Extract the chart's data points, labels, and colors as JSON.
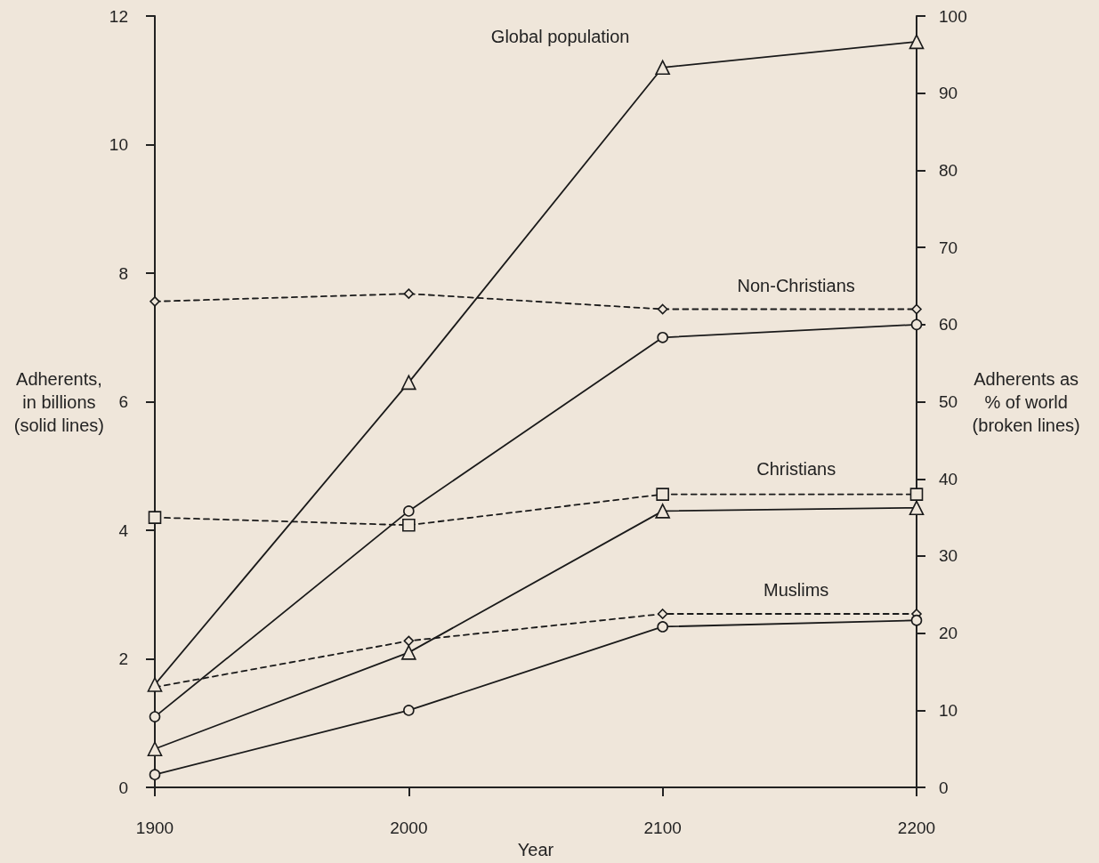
{
  "chart_data": {
    "type": "line",
    "xlabel": "Year",
    "ylabel": "Adherents,\nin billions\n(solid lines)",
    "y2label": "Adherents as\n% of world\n(broken lines)",
    "categories": [
      "1900",
      "2000",
      "2100",
      "2200"
    ],
    "ylim": [
      0,
      12
    ],
    "yticks": [
      0,
      2,
      4,
      6,
      8,
      10,
      12
    ],
    "y2lim": [
      0,
      100
    ],
    "y2ticks": [
      0,
      10,
      20,
      30,
      40,
      50,
      60,
      70,
      80,
      90,
      100
    ],
    "series": [
      {
        "name": "Global population",
        "color": "#1a1a1a",
        "values": [
          1.6,
          6.3,
          11.2,
          11.6
        ],
        "marker": "triangle",
        "line_style": "solid"
      },
      {
        "color": "#1a1a1a",
        "values": [
          1.1,
          4.3,
          7.0,
          7.2
        ],
        "marker": "circle",
        "line_style": "solid"
      },
      {
        "color": "#1a1a1a",
        "values": [
          0.6,
          2.1,
          4.3,
          4.35
        ],
        "marker": "triangle",
        "line_style": "solid"
      },
      {
        "color": "#1a1a1a",
        "values": [
          0.2,
          1.2,
          2.5,
          2.6
        ],
        "marker": "circle",
        "line_style": "solid"
      },
      {
        "name": "Non-Christians",
        "color": "#1a1a1a",
        "values": [
          63,
          64,
          62,
          62
        ],
        "marker": "diamond",
        "line_style": "dashed",
        "axis": "y2"
      },
      {
        "name": "Christians",
        "color": "#1a1a1a",
        "values": [
          35,
          34,
          38,
          38
        ],
        "marker": "square",
        "line_style": "dashed",
        "axis": "y2"
      },
      {
        "name": "Muslims",
        "color": "#1a1a1a",
        "values": [
          13,
          19,
          22.5,
          22.5
        ],
        "marker": "diamond",
        "line_style": "dashed",
        "axis": "y2"
      }
    ]
  }
}
